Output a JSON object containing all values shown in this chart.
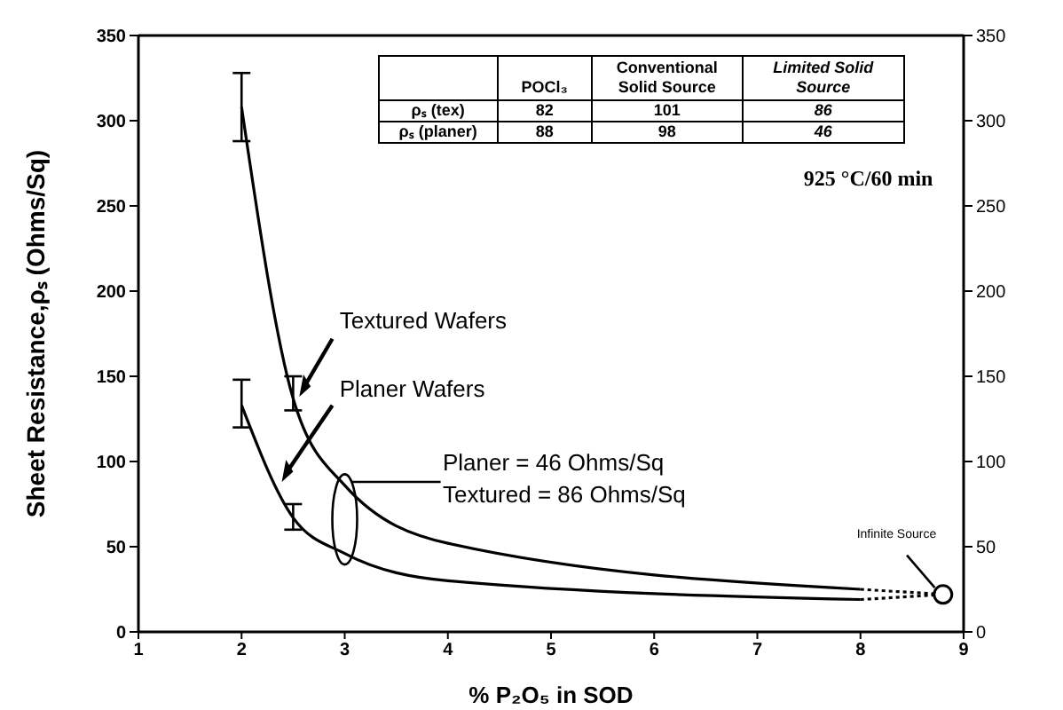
{
  "chart_data": {
    "type": "line",
    "xlabel": "% P₂O₅ in SOD",
    "ylabel": "Sheet Resistance,ρₛ (Ohms/Sq)",
    "xlim": [
      1,
      9
    ],
    "xticks": [
      1,
      2,
      3,
      4,
      5,
      6,
      7,
      8,
      9
    ],
    "ylim": [
      0,
      350
    ],
    "yticks": [
      0,
      50,
      100,
      150,
      200,
      250,
      300,
      350
    ],
    "y2lim": [
      0,
      350
    ],
    "y2ticks": [
      0,
      50,
      100,
      150,
      200,
      250,
      300,
      350
    ],
    "marker": "none",
    "line_style": "solid",
    "series": [
      {
        "color": "#000000",
        "x": [
          2,
          2.5,
          3,
          4,
          8
        ],
        "values": [
          308,
          137,
          86,
          52,
          25
        ],
        "errors": [
          [
            288,
            328
          ],
          [
            130,
            150
          ],
          null,
          null,
          null
        ]
      },
      {
        "color": "#000000",
        "x": [
          2,
          2.5,
          3,
          4,
          8
        ],
        "values": [
          133,
          67,
          46,
          30,
          19
        ],
        "errors": [
          [
            120,
            148
          ],
          [
            60,
            75
          ],
          null,
          null,
          null
        ]
      },
      {
        "color": "#000000",
        "x": [
          8,
          8.8
        ],
        "values": [
          25,
          22
        ],
        "line_style": "dotted"
      },
      {
        "color": "#000000",
        "x": [
          8,
          8.8
        ],
        "values": [
          19,
          22
        ],
        "line_style": "dotted"
      },
      {
        "type": "scatter",
        "color": "#000000",
        "x": [
          8.8
        ],
        "values": [
          22
        ],
        "marker": "circle"
      }
    ],
    "annotations": [
      "925 °C/60 min",
      "Textured Wafers",
      "Planer Wafers",
      "Planer  = 46 Ohms/Sq",
      "Textured  = 86 Ohms/Sq",
      "Infinite Source",
      "POCl₃",
      "Conventional Solid Source",
      "Limited Solid Source",
      "ρₛ (tex)",
      "82",
      "101",
      "86",
      "ρₛ (planer)",
      "88",
      "98",
      "46"
    ]
  }
}
